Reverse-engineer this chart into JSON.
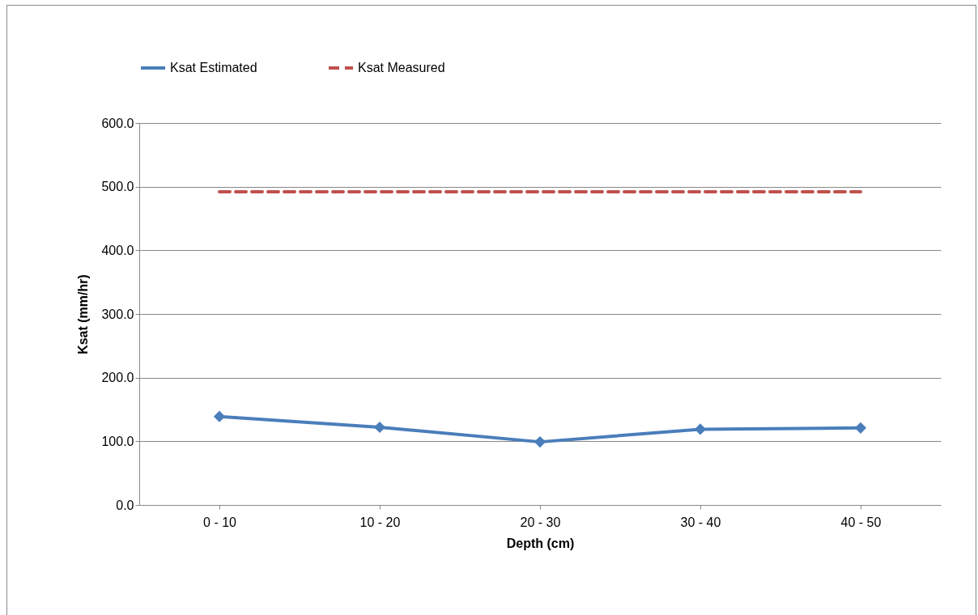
{
  "chart_data": {
    "type": "line",
    "xlabel": "Depth (cm)",
    "ylabel": "Ksat (mm/hr)",
    "categories": [
      "0 - 10",
      "10 - 20",
      "20 - 30",
      "30 - 40",
      "40 - 50"
    ],
    "series": [
      {
        "name": "Ksat Estimated",
        "color": "#4a7ebb",
        "values": [
          139,
          122,
          99,
          119,
          121
        ],
        "marker": "diamond",
        "line_style": "solid"
      },
      {
        "name": "Ksat Measured",
        "color": "#c0504d",
        "values": [
          492,
          492,
          492,
          492,
          492
        ],
        "marker": "none",
        "line_style": "dashed"
      }
    ],
    "ylim": [
      0,
      600
    ],
    "yticks": [
      {
        "value": 0,
        "label": "0.0"
      },
      {
        "value": 100,
        "label": "100.0"
      },
      {
        "value": 200,
        "label": "200.0"
      },
      {
        "value": 300,
        "label": "300.0"
      },
      {
        "value": 400,
        "label": "400.0"
      },
      {
        "value": 500,
        "label": "500.0"
      },
      {
        "value": 600,
        "label": "600.0"
      }
    ],
    "grid": "y",
    "legend": "top"
  }
}
